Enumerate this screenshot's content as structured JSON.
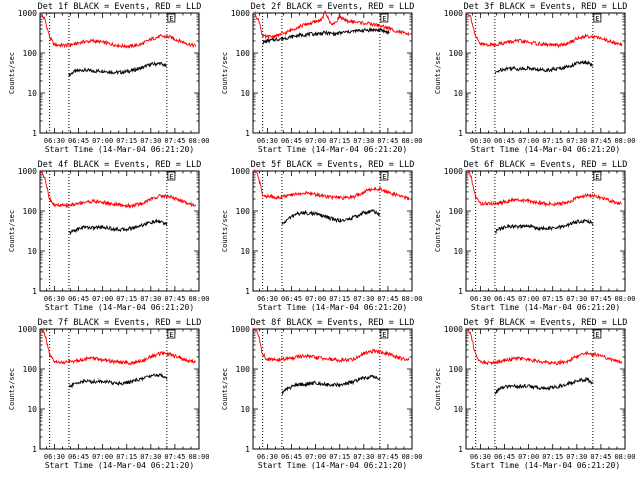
{
  "chart_data": [
    {
      "type": "line",
      "title": "Det 1f BLACK = Events, RED = LLD",
      "xlabel": "Start Time (14-Mar-04 06:21:20)",
      "ylabel": "Counts/sec",
      "yscale": "log",
      "ylim": [
        1,
        1000
      ],
      "xlim": [
        "06:21",
        "08:00"
      ],
      "xtick_labels": [
        "06:30",
        "06:45",
        "07:00",
        "07:15",
        "07:30",
        "07:45",
        "08:00"
      ],
      "ytick_labels": [
        "1",
        "10",
        "100",
        "1000"
      ],
      "vlines": [
        "06:27",
        "06:39",
        "07:40"
      ],
      "marker_label": "E",
      "series": [
        {
          "name": "Events",
          "color": "#000000",
          "x": [
            "06:39",
            "06:42",
            "06:48",
            "06:54",
            "07:00",
            "07:06",
            "07:12",
            "07:18",
            "07:24",
            "07:30",
            "07:36",
            "07:40"
          ],
          "values": [
            28,
            34,
            38,
            35,
            36,
            33,
            33,
            36,
            42,
            52,
            55,
            45
          ]
        },
        {
          "name": "LLD",
          "color": "#ff0000",
          "x": [
            "06:22",
            "06:24",
            "06:27",
            "06:30",
            "06:36",
            "06:42",
            "06:48",
            "06:54",
            "07:00",
            "07:06",
            "07:12",
            "07:18",
            "07:24",
            "07:30",
            "07:36",
            "07:42",
            "07:48",
            "07:54",
            "07:58"
          ],
          "values": [
            900,
            700,
            250,
            160,
            155,
            165,
            190,
            200,
            185,
            165,
            150,
            148,
            165,
            220,
            260,
            250,
            200,
            165,
            150
          ]
        }
      ]
    },
    {
      "type": "line",
      "title": "Det 2f BLACK = Events, RED = LLD",
      "xlabel": "Start Time (14-Mar-04 06:21:20)",
      "ylabel": "Counts/sec",
      "yscale": "log",
      "ylim": [
        1,
        1000
      ],
      "xlim": [
        "06:21",
        "08:00"
      ],
      "xtick_labels": [
        "06:30",
        "06:45",
        "07:00",
        "07:15",
        "07:30",
        "07:45",
        "08:00"
      ],
      "ytick_labels": [
        "1",
        "10",
        "100",
        "1000"
      ],
      "vlines": [
        "06:27",
        "06:39",
        "07:40"
      ],
      "marker_label": "E",
      "series": [
        {
          "name": "Events",
          "color": "#000000",
          "x": [
            "06:27",
            "06:30",
            "06:36",
            "06:42",
            "06:48",
            "06:54",
            "07:00",
            "07:06",
            "07:12",
            "07:18",
            "07:24",
            "07:30",
            "07:36",
            "07:42",
            "07:46"
          ],
          "values": [
            180,
            200,
            220,
            240,
            270,
            290,
            300,
            320,
            300,
            330,
            350,
            370,
            380,
            360,
            320
          ]
        },
        {
          "name": "LLD",
          "color": "#ff0000",
          "x": [
            "06:22",
            "06:25",
            "06:27",
            "06:30",
            "06:36",
            "06:42",
            "06:48",
            "06:54",
            "07:00",
            "07:04",
            "07:06",
            "07:09",
            "07:12",
            "07:15",
            "07:18",
            "07:24",
            "07:30",
            "07:36",
            "07:42",
            "07:48",
            "07:54",
            "07:58"
          ],
          "values": [
            1000,
            600,
            260,
            250,
            270,
            330,
            430,
            520,
            600,
            700,
            1100,
            560,
            540,
            850,
            640,
            600,
            560,
            520,
            460,
            380,
            320,
            280
          ]
        }
      ]
    },
    {
      "type": "line",
      "title": "Det 3f BLACK = Events, RED = LLD",
      "xlabel": "Start Time (14-Mar-04 06:21:20)",
      "ylabel": "Counts/sec",
      "yscale": "log",
      "ylim": [
        1,
        1000
      ],
      "xlim": [
        "06:21",
        "08:00"
      ],
      "xtick_labels": [
        "06:30",
        "06:45",
        "07:00",
        "07:15",
        "07:30",
        "07:45",
        "08:00"
      ],
      "ytick_labels": [
        "1",
        "10",
        "100",
        "1000"
      ],
      "vlines": [
        "06:27",
        "06:39",
        "07:40"
      ],
      "marker_label": "E",
      "series": [
        {
          "name": "Events",
          "color": "#000000",
          "x": [
            "06:39",
            "06:42",
            "06:48",
            "06:54",
            "07:00",
            "07:06",
            "07:12",
            "07:18",
            "07:24",
            "07:30",
            "07:36",
            "07:40"
          ],
          "values": [
            30,
            38,
            42,
            40,
            42,
            38,
            38,
            40,
            45,
            55,
            58,
            48
          ]
        },
        {
          "name": "LLD",
          "color": "#ff0000",
          "x": [
            "06:22",
            "06:24",
            "06:27",
            "06:30",
            "06:36",
            "06:42",
            "06:48",
            "06:54",
            "07:00",
            "07:06",
            "07:12",
            "07:18",
            "07:24",
            "07:30",
            "07:36",
            "07:42",
            "07:48",
            "07:54",
            "07:58"
          ],
          "values": [
            1000,
            800,
            250,
            165,
            160,
            170,
            190,
            200,
            185,
            170,
            160,
            155,
            170,
            230,
            270,
            250,
            210,
            175,
            160
          ]
        }
      ]
    },
    {
      "type": "line",
      "title": "Det 4f BLACK = Events, RED = LLD",
      "xlabel": "Start Time (14-Mar-04 06:21:20)",
      "ylabel": "Counts/sec",
      "yscale": "log",
      "ylim": [
        1,
        1000
      ],
      "xlim": [
        "06:21",
        "08:00"
      ],
      "xtick_labels": [
        "06:30",
        "06:45",
        "07:00",
        "07:15",
        "07:30",
        "07:45",
        "08:00"
      ],
      "ytick_labels": [
        "1",
        "10",
        "100",
        "1000"
      ],
      "vlines": [
        "06:27",
        "06:39",
        "07:40"
      ],
      "marker_label": "E",
      "series": [
        {
          "name": "Events",
          "color": "#000000",
          "x": [
            "06:39",
            "06:42",
            "06:48",
            "06:54",
            "07:00",
            "07:06",
            "07:12",
            "07:18",
            "07:24",
            "07:30",
            "07:36",
            "07:40"
          ],
          "values": [
            28,
            32,
            40,
            38,
            40,
            36,
            34,
            37,
            44,
            52,
            55,
            46
          ]
        },
        {
          "name": "LLD",
          "color": "#ff0000",
          "x": [
            "06:22",
            "06:24",
            "06:27",
            "06:30",
            "06:36",
            "06:42",
            "06:48",
            "06:54",
            "07:00",
            "07:06",
            "07:12",
            "07:18",
            "07:24",
            "07:30",
            "07:36",
            "07:42",
            "07:48",
            "07:54",
            "07:58"
          ],
          "values": [
            950,
            700,
            200,
            140,
            135,
            145,
            165,
            175,
            165,
            150,
            138,
            135,
            150,
            200,
            240,
            230,
            185,
            155,
            140
          ]
        }
      ]
    },
    {
      "type": "line",
      "title": "Det 5f BLACK = Events, RED = LLD",
      "xlabel": "Start Time (14-Mar-04 06:21:20)",
      "ylabel": "Counts/sec",
      "yscale": "log",
      "ylim": [
        1,
        1000
      ],
      "xlim": [
        "06:21",
        "08:00"
      ],
      "xtick_labels": [
        "06:30",
        "06:45",
        "07:00",
        "07:15",
        "07:30",
        "07:45",
        "08:00"
      ],
      "ytick_labels": [
        "1",
        "10",
        "100",
        "1000"
      ],
      "vlines": [
        "06:27",
        "06:39",
        "07:40"
      ],
      "marker_label": "E",
      "series": [
        {
          "name": "Events",
          "color": "#000000",
          "x": [
            "06:39",
            "06:42",
            "06:48",
            "06:54",
            "07:00",
            "07:06",
            "07:12",
            "07:18",
            "07:24",
            "07:30",
            "07:36",
            "07:40"
          ],
          "values": [
            45,
            60,
            85,
            90,
            85,
            72,
            60,
            58,
            70,
            90,
            100,
            80
          ]
        },
        {
          "name": "LLD",
          "color": "#ff0000",
          "x": [
            "06:22",
            "06:24",
            "06:27",
            "06:30",
            "06:36",
            "06:42",
            "06:48",
            "06:54",
            "07:00",
            "07:06",
            "07:12",
            "07:18",
            "07:24",
            "07:30",
            "07:36",
            "07:42",
            "07:48",
            "07:54",
            "07:58"
          ],
          "values": [
            1000,
            800,
            260,
            230,
            220,
            235,
            270,
            280,
            260,
            235,
            215,
            210,
            230,
            300,
            370,
            340,
            270,
            230,
            205
          ]
        }
      ]
    },
    {
      "type": "line",
      "title": "Det 6f BLACK = Events, RED = LLD",
      "xlabel": "Start Time (14-Mar-04 06:21:20)",
      "ylabel": "Counts/sec",
      "yscale": "log",
      "ylim": [
        1,
        1000
      ],
      "xlim": [
        "06:21",
        "08:00"
      ],
      "xtick_labels": [
        "06:30",
        "06:45",
        "07:00",
        "07:15",
        "07:30",
        "07:45",
        "08:00"
      ],
      "ytick_labels": [
        "1",
        "10",
        "100",
        "1000"
      ],
      "vlines": [
        "06:27",
        "06:39",
        "07:40"
      ],
      "marker_label": "E",
      "series": [
        {
          "name": "Events",
          "color": "#000000",
          "x": [
            "06:39",
            "06:42",
            "06:48",
            "06:54",
            "07:00",
            "07:06",
            "07:12",
            "07:18",
            "07:24",
            "07:30",
            "07:36",
            "07:40"
          ],
          "values": [
            30,
            36,
            42,
            40,
            42,
            37,
            36,
            38,
            44,
            54,
            58,
            48
          ]
        },
        {
          "name": "LLD",
          "color": "#ff0000",
          "x": [
            "06:22",
            "06:24",
            "06:27",
            "06:30",
            "06:36",
            "06:42",
            "06:48",
            "06:54",
            "07:00",
            "07:06",
            "07:12",
            "07:18",
            "07:24",
            "07:30",
            "07:36",
            "07:42",
            "07:48",
            "07:54",
            "07:58"
          ],
          "values": [
            1000,
            750,
            220,
            155,
            150,
            160,
            180,
            190,
            175,
            160,
            150,
            148,
            160,
            210,
            250,
            235,
            195,
            165,
            150
          ]
        }
      ]
    },
    {
      "type": "line",
      "title": "Det 7f BLACK = Events, RED = LLD",
      "xlabel": "Start Time (14-Mar-04 06:21:20)",
      "ylabel": "Counts/sec",
      "yscale": "log",
      "ylim": [
        1,
        1000
      ],
      "xlim": [
        "06:21",
        "08:00"
      ],
      "xtick_labels": [
        "06:30",
        "06:45",
        "07:00",
        "07:15",
        "07:30",
        "07:45",
        "08:00"
      ],
      "ytick_labels": [
        "1",
        "10",
        "100",
        "1000"
      ],
      "vlines": [
        "06:27",
        "06:39",
        "07:40"
      ],
      "marker_label": "E",
      "series": [
        {
          "name": "Events",
          "color": "#000000",
          "x": [
            "06:39",
            "06:42",
            "06:48",
            "06:54",
            "07:00",
            "07:06",
            "07:12",
            "07:18",
            "07:24",
            "07:30",
            "07:36",
            "07:40"
          ],
          "values": [
            35,
            42,
            50,
            48,
            50,
            45,
            44,
            48,
            56,
            68,
            72,
            60
          ]
        },
        {
          "name": "LLD",
          "color": "#ff0000",
          "x": [
            "06:22",
            "06:24",
            "06:27",
            "06:30",
            "06:36",
            "06:42",
            "06:48",
            "06:54",
            "07:00",
            "07:06",
            "07:12",
            "07:18",
            "07:24",
            "07:30",
            "07:36",
            "07:42",
            "07:48",
            "07:54",
            "07:58"
          ],
          "values": [
            1000,
            750,
            220,
            150,
            145,
            155,
            175,
            185,
            170,
            155,
            145,
            142,
            155,
            205,
            245,
            230,
            190,
            160,
            145
          ]
        }
      ]
    },
    {
      "type": "line",
      "title": "Det 8f BLACK = Events, RED = LLD",
      "xlabel": "Start Time (14-Mar-04 06:21:20)",
      "ylabel": "Counts/sec",
      "yscale": "log",
      "ylim": [
        1,
        1000
      ],
      "xlim": [
        "06:21",
        "08:00"
      ],
      "xtick_labels": [
        "06:30",
        "06:45",
        "07:00",
        "07:15",
        "07:30",
        "07:45",
        "08:00"
      ],
      "ytick_labels": [
        "1",
        "10",
        "100",
        "1000"
      ],
      "vlines": [
        "06:27",
        "06:39",
        "07:40"
      ],
      "marker_label": "E",
      "series": [
        {
          "name": "Events",
          "color": "#000000",
          "x": [
            "06:39",
            "06:42",
            "06:48",
            "06:54",
            "07:00",
            "07:06",
            "07:12",
            "07:18",
            "07:24",
            "07:30",
            "07:36",
            "07:40"
          ],
          "values": [
            25,
            32,
            40,
            42,
            45,
            42,
            40,
            42,
            48,
            60,
            65,
            55
          ]
        },
        {
          "name": "LLD",
          "color": "#ff0000",
          "x": [
            "06:22",
            "06:24",
            "06:27",
            "06:30",
            "06:36",
            "06:42",
            "06:48",
            "06:54",
            "07:00",
            "07:06",
            "07:12",
            "07:18",
            "07:24",
            "07:30",
            "07:36",
            "07:42",
            "07:48",
            "07:54",
            "07:58"
          ],
          "values": [
            1000,
            800,
            230,
            175,
            170,
            180,
            200,
            210,
            195,
            180,
            170,
            165,
            180,
            240,
            280,
            260,
            215,
            180,
            165
          ]
        }
      ]
    },
    {
      "type": "line",
      "title": "Det 9f BLACK = Events, RED = LLD",
      "xlabel": "Start Time (14-Mar-04 06:21:20)",
      "ylabel": "Counts/sec",
      "yscale": "log",
      "ylim": [
        1,
        1000
      ],
      "xlim": [
        "06:21",
        "08:00"
      ],
      "xtick_labels": [
        "06:30",
        "06:45",
        "07:00",
        "07:15",
        "07:30",
        "07:45",
        "08:00"
      ],
      "ytick_labels": [
        "1",
        "10",
        "100",
        "1000"
      ],
      "vlines": [
        "06:27",
        "06:39",
        "07:40"
      ],
      "marker_label": "E",
      "series": [
        {
          "name": "Events",
          "color": "#000000",
          "x": [
            "06:39",
            "06:42",
            "06:48",
            "06:54",
            "07:00",
            "07:06",
            "07:12",
            "07:18",
            "07:24",
            "07:30",
            "07:36",
            "07:40"
          ],
          "values": [
            25,
            32,
            38,
            36,
            38,
            34,
            33,
            36,
            42,
            50,
            55,
            45
          ]
        },
        {
          "name": "LLD",
          "color": "#ff0000",
          "x": [
            "06:22",
            "06:24",
            "06:27",
            "06:30",
            "06:36",
            "06:42",
            "06:48",
            "06:54",
            "07:00",
            "07:06",
            "07:12",
            "07:18",
            "07:24",
            "07:30",
            "07:36",
            "07:42",
            "07:48",
            "07:54",
            "07:58"
          ],
          "values": [
            1000,
            750,
            220,
            150,
            145,
            155,
            175,
            185,
            170,
            155,
            145,
            142,
            155,
            205,
            245,
            230,
            190,
            160,
            145
          ]
        }
      ]
    }
  ]
}
